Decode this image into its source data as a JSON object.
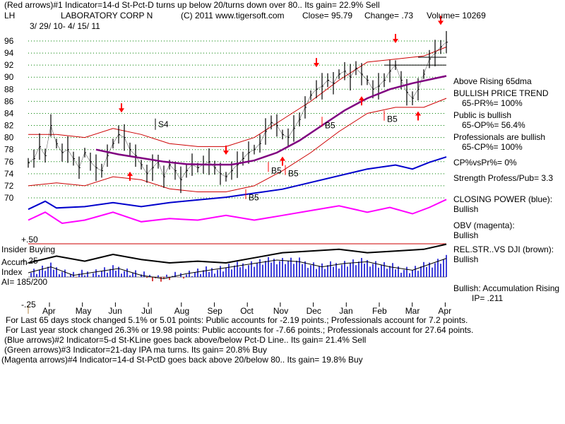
{
  "header": {
    "line1": "(Red arrows)#1 Indicator=14-d St-Pct-D turns up below 20/turns down over 80.. Its gain= 22.9% Sell",
    "ticker": "LH",
    "company": "LABORATORY CORP N",
    "copyright": "(C) 2011 www.tigersoft.com",
    "close": "Close=  95.79",
    "change": "Change= .73",
    "volume": "Volume= 10269",
    "date_range": "3/ 29/ 10-  4/ 15/ 11"
  },
  "right_panel": {
    "above": "Above Rising 65dma",
    "bpt": "BULLISH PRICE TREND",
    "pr": "65-PR%= 100%",
    "pub": "Public is bullish",
    "op": "65-OP%= 56.4%",
    "prof": "Professionals are bullish",
    "cp": "65-CP%= 100%",
    "cpvs": "CP%vsPr%=  0%",
    "strength": "Strength Profess/Pub= 3.3",
    "closing": "CLOSING POWER (blue):",
    "closing_v": "Bullish",
    "obv": "OBV (magenta):",
    "obv_v": "Bullish",
    "rel": "REL.STR..VS DJI (brown):",
    "rel_v": "Bullish",
    "acc": "Bullish: Accumulation Rising",
    "ip": "IP=  .211"
  },
  "left_labels": {
    "insider": "Insider Buying",
    "accum": "Accum",
    "index": "Index",
    "ai": "AI= 185/200",
    "plus50": "+.50",
    "plus25": "+.25",
    "minus25": "-.25"
  },
  "annotations": {
    "b5": "B5",
    "s4": "S4"
  },
  "footer": {
    "l1": "For Last 65 days stock changed  5.1% or  5.01 points:  Public accounts for -2.19 points.;  Professionals account for  7.2 points.",
    "l2": "For Last year stock changed  26.3% or  19.98 points:  Public accounts for -7.66 points.;  Professionals account for  27.64 points.",
    "l3": "(Blue arrows)#2 Indicator=5-d St-KLine goes back above/below Pct-D Line.. Its gain= 21.4% Sell",
    "l4": "(Green arrows)#3 Indicator=21-day IPA ma turns. Its gain= 20.8% Buy",
    "l5": "(Magenta arrows)#4 Indicator=14-d St-PctD goes back above 20/below 80.. Its gain= 19.8% Buy"
  },
  "chart_data": {
    "type": "line",
    "y_ticks": [
      "96",
      "94",
      "92",
      "90",
      "88",
      "86",
      "84",
      "82",
      "80",
      "78",
      "76",
      "74",
      "72",
      "70"
    ],
    "ylim": [
      70,
      96
    ],
    "months": [
      "Apr",
      "May",
      "Jun",
      "Jul",
      "Aug",
      "Sep",
      "Oct",
      "Nov",
      "Dec",
      "Jan",
      "Feb",
      "Mar",
      "Apr"
    ],
    "colors": {
      "price": "#000000",
      "ma65": "#800080",
      "bands": "#cc0000",
      "closing_power": "#0000cc",
      "obv": "#ff00ff",
      "accum_bars": "#0000cc",
      "arrow": "#ff0000",
      "grid": "#008000"
    },
    "close_series": [
      {
        "d": 0,
        "v": 75.8
      },
      {
        "d": 2,
        "v": 76.5
      },
      {
        "d": 4,
        "v": 78.5
      },
      {
        "d": 6,
        "v": 77.0
      },
      {
        "d": 8,
        "v": 82.0
      },
      {
        "d": 10,
        "v": 79.0
      },
      {
        "d": 12,
        "v": 77.5
      },
      {
        "d": 14,
        "v": 78.0
      },
      {
        "d": 16,
        "v": 76.5
      },
      {
        "d": 18,
        "v": 75.0
      },
      {
        "d": 20,
        "v": 77.5
      },
      {
        "d": 22,
        "v": 76.0
      },
      {
        "d": 24,
        "v": 75.0
      },
      {
        "d": 26,
        "v": 74.5
      },
      {
        "d": 28,
        "v": 77.0
      },
      {
        "d": 30,
        "v": 79.0
      },
      {
        "d": 32,
        "v": 80.5
      },
      {
        "d": 34,
        "v": 80.0
      },
      {
        "d": 36,
        "v": 78.0
      },
      {
        "d": 38,
        "v": 77.0
      },
      {
        "d": 40,
        "v": 75.5
      },
      {
        "d": 42,
        "v": 74.0
      },
      {
        "d": 44,
        "v": 75.0
      },
      {
        "d": 46,
        "v": 76.0
      },
      {
        "d": 48,
        "v": 73.5
      },
      {
        "d": 50,
        "v": 75.5
      },
      {
        "d": 52,
        "v": 74.5
      },
      {
        "d": 54,
        "v": 73.0
      },
      {
        "d": 56,
        "v": 74.5
      },
      {
        "d": 58,
        "v": 75.5
      },
      {
        "d": 60,
        "v": 75.0
      },
      {
        "d": 62,
        "v": 75.5
      },
      {
        "d": 64,
        "v": 76.0
      },
      {
        "d": 66,
        "v": 75.0
      },
      {
        "d": 68,
        "v": 74.0
      },
      {
        "d": 70,
        "v": 73.5
      },
      {
        "d": 72,
        "v": 74.5
      },
      {
        "d": 74,
        "v": 75.5
      },
      {
        "d": 76,
        "v": 76.5
      },
      {
        "d": 78,
        "v": 77.5
      },
      {
        "d": 80,
        "v": 78.0
      },
      {
        "d": 82,
        "v": 79.0
      },
      {
        "d": 84,
        "v": 81.0
      },
      {
        "d": 86,
        "v": 82.5
      },
      {
        "d": 88,
        "v": 82.0
      },
      {
        "d": 90,
        "v": 80.5
      },
      {
        "d": 92,
        "v": 80.0
      },
      {
        "d": 94,
        "v": 81.5
      },
      {
        "d": 96,
        "v": 83.0
      },
      {
        "d": 98,
        "v": 85.0
      },
      {
        "d": 100,
        "v": 87.0
      },
      {
        "d": 102,
        "v": 88.0
      },
      {
        "d": 104,
        "v": 88.5
      },
      {
        "d": 106,
        "v": 89.5
      },
      {
        "d": 108,
        "v": 89.0
      },
      {
        "d": 110,
        "v": 90.5
      },
      {
        "d": 112,
        "v": 91.0
      },
      {
        "d": 114,
        "v": 90.0
      },
      {
        "d": 116,
        "v": 91.5
      },
      {
        "d": 118,
        "v": 90.5
      },
      {
        "d": 120,
        "v": 89.5
      },
      {
        "d": 122,
        "v": 88.0
      },
      {
        "d": 124,
        "v": 88.5
      },
      {
        "d": 126,
        "v": 89.5
      },
      {
        "d": 128,
        "v": 91.0
      },
      {
        "d": 130,
        "v": 92.0
      },
      {
        "d": 132,
        "v": 89.5
      },
      {
        "d": 134,
        "v": 87.5
      },
      {
        "d": 136,
        "v": 86.5
      },
      {
        "d": 138,
        "v": 88.0
      },
      {
        "d": 140,
        "v": 90.5
      },
      {
        "d": 142,
        "v": 93.0
      },
      {
        "d": 144,
        "v": 94.0
      },
      {
        "d": 146,
        "v": 95.0
      },
      {
        "d": 148,
        "v": 95.8
      }
    ],
    "ma65_series": [
      {
        "d": 24,
        "v": 78.0
      },
      {
        "d": 32,
        "v": 77.2
      },
      {
        "d": 40,
        "v": 76.6
      },
      {
        "d": 48,
        "v": 76.0
      },
      {
        "d": 56,
        "v": 75.6
      },
      {
        "d": 64,
        "v": 75.5
      },
      {
        "d": 72,
        "v": 75.5
      },
      {
        "d": 80,
        "v": 76.2
      },
      {
        "d": 88,
        "v": 77.5
      },
      {
        "d": 96,
        "v": 79.5
      },
      {
        "d": 104,
        "v": 82.0
      },
      {
        "d": 112,
        "v": 84.5
      },
      {
        "d": 120,
        "v": 86.5
      },
      {
        "d": 128,
        "v": 88.0
      },
      {
        "d": 136,
        "v": 89.0
      },
      {
        "d": 144,
        "v": 89.8
      },
      {
        "d": 148,
        "v": 90.2
      }
    ],
    "upper_band": [
      {
        "d": 0,
        "v": 80.5
      },
      {
        "d": 10,
        "v": 80.5
      },
      {
        "d": 20,
        "v": 80.0
      },
      {
        "d": 30,
        "v": 81.5
      },
      {
        "d": 40,
        "v": 80.5
      },
      {
        "d": 50,
        "v": 79.0
      },
      {
        "d": 60,
        "v": 78.5
      },
      {
        "d": 70,
        "v": 78.5
      },
      {
        "d": 80,
        "v": 80.0
      },
      {
        "d": 90,
        "v": 83.0
      },
      {
        "d": 100,
        "v": 86.0
      },
      {
        "d": 110,
        "v": 89.5
      },
      {
        "d": 120,
        "v": 92.5
      },
      {
        "d": 130,
        "v": 93.0
      },
      {
        "d": 140,
        "v": 93.5
      },
      {
        "d": 148,
        "v": 95.0
      }
    ],
    "lower_band": [
      {
        "d": 0,
        "v": 72.0
      },
      {
        "d": 10,
        "v": 72.5
      },
      {
        "d": 20,
        "v": 72.0
      },
      {
        "d": 30,
        "v": 73.5
      },
      {
        "d": 40,
        "v": 73.0
      },
      {
        "d": 50,
        "v": 71.5
      },
      {
        "d": 60,
        "v": 71.0
      },
      {
        "d": 70,
        "v": 71.0
      },
      {
        "d": 80,
        "v": 72.0
      },
      {
        "d": 90,
        "v": 74.5
      },
      {
        "d": 100,
        "v": 77.5
      },
      {
        "d": 110,
        "v": 81.0
      },
      {
        "d": 120,
        "v": 84.0
      },
      {
        "d": 130,
        "v": 85.0
      },
      {
        "d": 140,
        "v": 85.0
      },
      {
        "d": 148,
        "v": 86.5
      }
    ],
    "closing_power": [
      {
        "d": 0,
        "v": 0.1
      },
      {
        "d": 6,
        "v": 0.4
      },
      {
        "d": 10,
        "v": 0.15
      },
      {
        "d": 20,
        "v": 0.2
      },
      {
        "d": 30,
        "v": 0.35
      },
      {
        "d": 40,
        "v": 0.2
      },
      {
        "d": 50,
        "v": 0.35
      },
      {
        "d": 60,
        "v": 0.45
      },
      {
        "d": 70,
        "v": 0.55
      },
      {
        "d": 80,
        "v": 0.7
      },
      {
        "d": 90,
        "v": 0.85
      },
      {
        "d": 100,
        "v": 1.1
      },
      {
        "d": 110,
        "v": 1.35
      },
      {
        "d": 120,
        "v": 1.6
      },
      {
        "d": 130,
        "v": 1.75
      },
      {
        "d": 136,
        "v": 1.6
      },
      {
        "d": 142,
        "v": 1.85
      },
      {
        "d": 148,
        "v": 2.05
      }
    ],
    "obv": [
      {
        "d": 0,
        "v": 0.3
      },
      {
        "d": 6,
        "v": 0.55
      },
      {
        "d": 12,
        "v": 0.2
      },
      {
        "d": 20,
        "v": 0.3
      },
      {
        "d": 30,
        "v": 0.55
      },
      {
        "d": 40,
        "v": 0.25
      },
      {
        "d": 50,
        "v": 0.35
      },
      {
        "d": 60,
        "v": 0.3
      },
      {
        "d": 70,
        "v": 0.45
      },
      {
        "d": 80,
        "v": 0.3
      },
      {
        "d": 90,
        "v": 0.45
      },
      {
        "d": 100,
        "v": 0.6
      },
      {
        "d": 110,
        "v": 0.75
      },
      {
        "d": 120,
        "v": 0.55
      },
      {
        "d": 128,
        "v": 0.7
      },
      {
        "d": 136,
        "v": 0.5
      },
      {
        "d": 142,
        "v": 0.7
      },
      {
        "d": 148,
        "v": 0.95
      }
    ],
    "accum_index": [
      {
        "d": 0,
        "v": 0.05
      },
      {
        "d": 8,
        "v": 0.12
      },
      {
        "d": 16,
        "v": 0.02
      },
      {
        "d": 24,
        "v": 0.06
      },
      {
        "d": 32,
        "v": 0.1
      },
      {
        "d": 40,
        "v": 0.02
      },
      {
        "d": 48,
        "v": -0.02
      },
      {
        "d": 56,
        "v": 0.04
      },
      {
        "d": 64,
        "v": 0.08
      },
      {
        "d": 72,
        "v": 0.12
      },
      {
        "d": 80,
        "v": 0.16
      },
      {
        "d": 88,
        "v": 0.2
      },
      {
        "d": 96,
        "v": 0.18
      },
      {
        "d": 104,
        "v": 0.12
      },
      {
        "d": 112,
        "v": 0.16
      },
      {
        "d": 120,
        "v": 0.18
      },
      {
        "d": 128,
        "v": 0.12
      },
      {
        "d": 136,
        "v": 0.08
      },
      {
        "d": 142,
        "v": 0.15
      },
      {
        "d": 148,
        "v": 0.22
      }
    ],
    "rel_str": [
      {
        "d": 0,
        "v": 0.1
      },
      {
        "d": 10,
        "v": 0.18
      },
      {
        "d": 20,
        "v": 0.12
      },
      {
        "d": 30,
        "v": 0.2
      },
      {
        "d": 40,
        "v": 0.14
      },
      {
        "d": 50,
        "v": 0.1
      },
      {
        "d": 60,
        "v": 0.12
      },
      {
        "d": 70,
        "v": 0.1
      },
      {
        "d": 80,
        "v": 0.16
      },
      {
        "d": 90,
        "v": 0.22
      },
      {
        "d": 100,
        "v": 0.24
      },
      {
        "d": 110,
        "v": 0.26
      },
      {
        "d": 120,
        "v": 0.22
      },
      {
        "d": 130,
        "v": 0.24
      },
      {
        "d": 140,
        "v": 0.26
      },
      {
        "d": 148,
        "v": 0.32
      }
    ],
    "red_arrows_down": [
      {
        "d": 33
      },
      {
        "d": 70
      },
      {
        "d": 102
      },
      {
        "d": 130
      },
      {
        "d": 146
      }
    ],
    "red_arrows_up": [
      {
        "d": 36
      },
      {
        "d": 90
      },
      {
        "d": 118
      },
      {
        "d": 138
      }
    ],
    "b5_marks": [
      {
        "d": 77
      },
      {
        "d": 85
      },
      {
        "d": 91
      },
      {
        "d": 104
      },
      {
        "d": 126
      }
    ],
    "s4_mark": {
      "d": 45
    }
  }
}
